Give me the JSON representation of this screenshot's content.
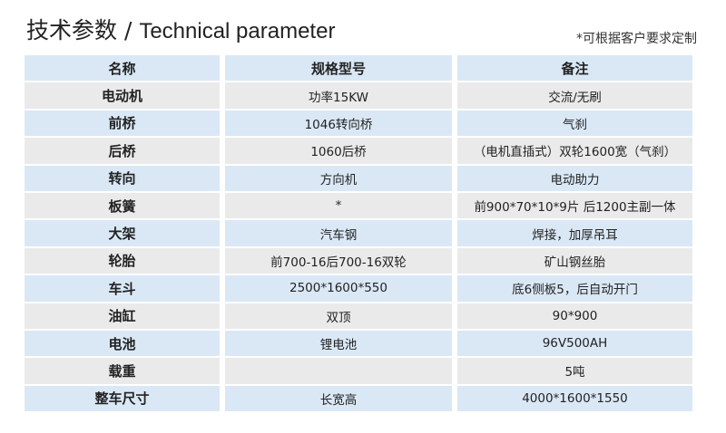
{
  "title_cn": "技术参数 /",
  "title_en": "Technical parameter",
  "note": "*可根据客户要求定制",
  "headers": [
    "名称",
    "规格型号",
    "备注"
  ],
  "rows": [
    [
      "电动机",
      "功率15KW",
      "交流/无刷"
    ],
    [
      "前桥",
      "1046转向桥",
      "气刹"
    ],
    [
      "后桥",
      "1060后桥",
      "（电机直插式）双轮1600宽（气刹）"
    ],
    [
      "转向",
      "方向机",
      "电动助力"
    ],
    [
      "板簧",
      "*",
      "前900*70*10*9片 后1200主副一体"
    ],
    [
      "大架",
      "汽车钢",
      "焊接，加厚吊耳"
    ],
    [
      "轮胎",
      "前700-16后700-16双轮",
      "矿山钢丝胎"
    ],
    [
      "车斗",
      "2500*1600*550",
      "底6侧板5，后自动开门"
    ],
    [
      "油缸",
      "双顶",
      "90*900"
    ],
    [
      "电池",
      "锂电池",
      "96V500AH"
    ],
    [
      "载重",
      "",
      "5吨"
    ],
    [
      "整车尺寸",
      "长宽高",
      "4000*1600*1550"
    ]
  ],
  "colors": {
    "header_row": "#dae8f6",
    "alt_row": "#eaeaea"
  }
}
